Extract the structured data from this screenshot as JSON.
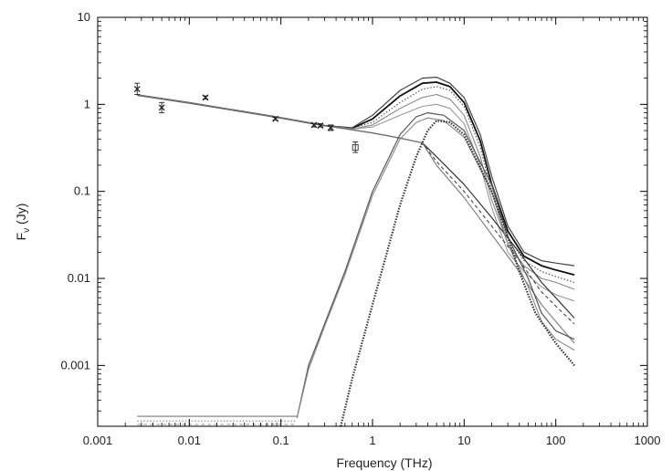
{
  "chart_data": {
    "type": "line",
    "title": "",
    "xlabel": "Frequency (THz)",
    "ylabel_main": "F",
    "ylabel_sub": "ν",
    "ylabel_unit": " (Jy)",
    "xscale": "log",
    "yscale": "log",
    "xlim": [
      0.001,
      1000
    ],
    "ylim": [
      0.0002,
      10
    ],
    "grid": false,
    "legend": "none",
    "xticks": [
      {
        "value": 0.001,
        "label": "0.001"
      },
      {
        "value": 0.01,
        "label": "0.01"
      },
      {
        "value": 0.1,
        "label": "0.1"
      },
      {
        "value": 1,
        "label": "1"
      },
      {
        "value": 10,
        "label": "10"
      },
      {
        "value": 100,
        "label": "100"
      },
      {
        "value": 1000,
        "label": "1000"
      }
    ],
    "yticks": [
      {
        "value": 10,
        "label": "10"
      },
      {
        "value": 1,
        "label": "1"
      },
      {
        "value": 0.1,
        "label": "0.1"
      },
      {
        "value": 0.01,
        "label": "0.01"
      },
      {
        "value": 0.001,
        "label": "0.001"
      }
    ],
    "observations": [
      {
        "x": 0.0027,
        "y": 1.5,
        "yerr_lo": 1.3,
        "yerr_hi": 1.75,
        "marker": "x"
      },
      {
        "x": 0.005,
        "y": 0.92,
        "yerr_lo": 0.8,
        "yerr_hi": 1.05,
        "marker": "x"
      },
      {
        "x": 0.015,
        "y": 1.2,
        "yerr_lo": 1.15,
        "yerr_hi": 1.25,
        "marker": "x"
      },
      {
        "x": 0.087,
        "y": 0.68,
        "yerr_lo": 0.66,
        "yerr_hi": 0.71,
        "marker": "x"
      },
      {
        "x": 0.23,
        "y": 0.58,
        "yerr_lo": 0.55,
        "yerr_hi": 0.6,
        "marker": "x"
      },
      {
        "x": 0.27,
        "y": 0.57,
        "yerr_lo": 0.55,
        "yerr_hi": 0.6,
        "marker": "x"
      },
      {
        "x": 0.35,
        "y": 0.54,
        "yerr_lo": 0.5,
        "yerr_hi": 0.58,
        "marker": "x"
      },
      {
        "x": 0.65,
        "y": 0.32,
        "yerr_lo": 0.28,
        "yerr_hi": 0.37,
        "marker": "square"
      }
    ],
    "series": [
      {
        "style": "solid-bold",
        "stroke": "#111111",
        "x": [
          0.0027,
          0.01,
          0.1,
          0.3,
          0.6,
          1,
          2,
          3.5,
          5,
          7,
          10,
          15,
          20,
          30,
          45,
          70,
          100,
          160
        ],
        "y": [
          1.28,
          1.04,
          0.7,
          0.57,
          0.53,
          0.68,
          1.25,
          1.75,
          1.8,
          1.6,
          1.05,
          0.38,
          0.12,
          0.035,
          0.018,
          0.014,
          0.0125,
          0.011
        ]
      },
      {
        "style": "solid",
        "stroke": "#444444",
        "x": [
          0.0027,
          0.01,
          0.1,
          0.3,
          0.6,
          1,
          2,
          3.5,
          5,
          7,
          10,
          15,
          20,
          30,
          45,
          70,
          100,
          160
        ],
        "y": [
          1.28,
          1.04,
          0.7,
          0.57,
          0.54,
          0.75,
          1.45,
          2.0,
          2.05,
          1.75,
          1.2,
          0.45,
          0.15,
          0.04,
          0.02,
          0.016,
          0.015,
          0.014
        ]
      },
      {
        "style": "dotted",
        "stroke": "#555555",
        "x": [
          0.0027,
          0.01,
          0.1,
          0.3,
          0.6,
          1,
          2,
          3.5,
          5,
          7,
          10,
          15,
          20,
          30,
          45,
          70,
          100,
          160
        ],
        "y": [
          1.28,
          1.04,
          0.7,
          0.57,
          0.53,
          0.62,
          1.05,
          1.5,
          1.6,
          1.45,
          0.95,
          0.32,
          0.1,
          0.03,
          0.016,
          0.012,
          0.0105,
          0.009
        ]
      },
      {
        "style": "solid-gray",
        "stroke": "#888888",
        "x": [
          0.0027,
          0.01,
          0.1,
          0.3,
          0.6,
          1,
          2,
          3.5,
          5,
          7,
          10,
          15,
          20,
          30,
          45,
          70,
          100,
          160
        ],
        "y": [
          1.28,
          1.04,
          0.7,
          0.57,
          0.52,
          0.58,
          0.9,
          1.2,
          1.3,
          1.15,
          0.75,
          0.25,
          0.08,
          0.025,
          0.014,
          0.01,
          0.009,
          0.0075
        ]
      },
      {
        "style": "solid-gray",
        "stroke": "#999999",
        "x": [
          0.0027,
          0.01,
          0.1,
          0.3,
          0.6,
          1,
          2,
          3.5,
          5,
          7,
          10,
          15,
          20,
          30,
          45,
          70,
          100,
          160
        ],
        "y": [
          1.28,
          1.04,
          0.7,
          0.57,
          0.52,
          0.55,
          0.75,
          0.95,
          1.0,
          0.9,
          0.6,
          0.2,
          0.065,
          0.02,
          0.012,
          0.008,
          0.0065,
          0.0055
        ]
      },
      {
        "style": "solid",
        "stroke": "#333333",
        "x": [
          0.0027,
          0.01,
          0.1,
          0.3,
          1,
          2,
          3.5,
          5,
          10,
          20,
          40,
          70,
          100,
          160
        ],
        "y": [
          1.28,
          1.04,
          0.7,
          0.57,
          0.47,
          0.41,
          0.36,
          0.25,
          0.12,
          0.05,
          0.02,
          0.009,
          0.006,
          0.0035
        ]
      },
      {
        "style": "dashed",
        "stroke": "#444444",
        "x": [
          0.0027,
          0.01,
          0.1,
          0.3,
          1,
          2,
          3.5,
          5,
          10,
          20,
          40,
          70,
          100,
          160
        ],
        "y": [
          1.28,
          1.04,
          0.7,
          0.57,
          0.47,
          0.41,
          0.36,
          0.22,
          0.1,
          0.04,
          0.016,
          0.007,
          0.0048,
          0.003
        ]
      },
      {
        "style": "solid-gray",
        "stroke": "#777777",
        "x": [
          0.0027,
          0.01,
          0.1,
          0.3,
          1,
          2,
          3.5,
          5,
          10,
          20,
          40,
          70,
          100,
          160
        ],
        "y": [
          1.28,
          1.04,
          0.7,
          0.57,
          0.47,
          0.41,
          0.36,
          0.2,
          0.085,
          0.032,
          0.012,
          0.005,
          0.0032,
          0.0018
        ]
      },
      {
        "style": "solid",
        "stroke": "#555555",
        "x": [
          0.15,
          0.2,
          0.3,
          0.5,
          1,
          2,
          3,
          4,
          6,
          10,
          20,
          30,
          50,
          70,
          100,
          160
        ],
        "y": [
          0.00025,
          0.001,
          0.003,
          0.012,
          0.1,
          0.45,
          0.72,
          0.8,
          0.75,
          0.5,
          0.12,
          0.03,
          0.01,
          0.004,
          0.0025,
          0.002
        ]
      },
      {
        "style": "solid-gray",
        "stroke": "#888888",
        "x": [
          0.15,
          0.2,
          0.3,
          0.5,
          1,
          2,
          3,
          4,
          6,
          10,
          20,
          30,
          50,
          70,
          100,
          160
        ],
        "y": [
          0.00025,
          0.0009,
          0.0028,
          0.011,
          0.09,
          0.4,
          0.62,
          0.7,
          0.65,
          0.42,
          0.1,
          0.025,
          0.008,
          0.0032,
          0.002,
          0.0015
        ]
      },
      {
        "style": "dotted-bold",
        "stroke": "#333333",
        "x": [
          0.45,
          0.6,
          1,
          2,
          3,
          4,
          5,
          7,
          10,
          20,
          30,
          40,
          60,
          100,
          160
        ],
        "y": [
          0.0002,
          0.0007,
          0.005,
          0.07,
          0.25,
          0.5,
          0.65,
          0.62,
          0.45,
          0.1,
          0.03,
          0.012,
          0.004,
          0.0018,
          0.001
        ]
      },
      {
        "style": "solid-gray",
        "stroke": "#777777",
        "x": [
          0.0027,
          0.05,
          0.1,
          0.12,
          0.14,
          0.15
        ],
        "y": [
          0.00026,
          0.00026,
          0.00026,
          0.00026,
          0.00026,
          0.00026
        ]
      },
      {
        "style": "dotted",
        "stroke": "#888888",
        "x": [
          0.0027,
          0.05,
          0.1,
          0.12,
          0.14,
          0.15
        ],
        "y": [
          0.00023,
          0.00023,
          0.00023,
          0.00023,
          0.00023,
          0.00023
        ]
      },
      {
        "style": "dashed",
        "stroke": "#999999",
        "x": [
          0.0027,
          0.05,
          0.1,
          0.12,
          0.14,
          0.15
        ],
        "y": [
          0.00021,
          0.00021,
          0.00021,
          0.00021,
          0.00021,
          0.00021
        ]
      }
    ]
  }
}
